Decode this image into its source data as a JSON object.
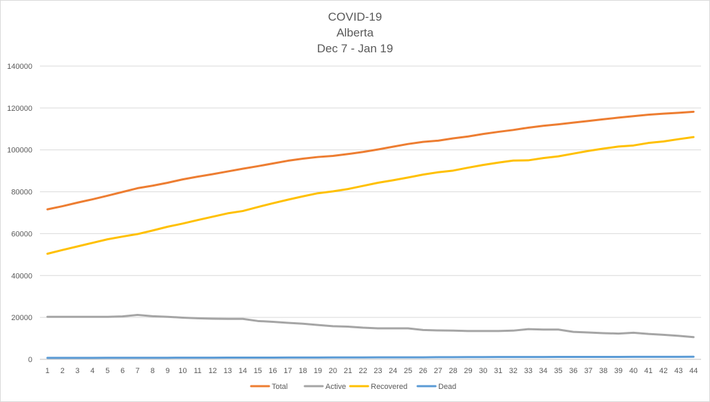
{
  "chart_data": {
    "type": "line",
    "title": [
      "COVID-19",
      "Alberta",
      "Dec 7 - Jan 19"
    ],
    "xlabel": "",
    "ylabel": "",
    "x": [
      1,
      2,
      3,
      4,
      5,
      6,
      7,
      8,
      9,
      10,
      11,
      12,
      13,
      14,
      15,
      16,
      17,
      18,
      19,
      20,
      21,
      22,
      23,
      24,
      25,
      26,
      27,
      28,
      29,
      30,
      31,
      32,
      33,
      34,
      35,
      36,
      37,
      38,
      39,
      40,
      41,
      42,
      43,
      44
    ],
    "ylim": [
      0,
      140000
    ],
    "yticks": [
      0,
      20000,
      40000,
      60000,
      80000,
      100000,
      120000,
      140000
    ],
    "grid": true,
    "legend_position": "bottom",
    "series": [
      {
        "name": "Total",
        "color": "#ED7D31",
        "values": [
          71600,
          73100,
          74800,
          76400,
          78100,
          79900,
          81700,
          82900,
          84300,
          85900,
          87200,
          88400,
          89700,
          91000,
          92200,
          93500,
          94800,
          95800,
          96600,
          97100,
          98000,
          99000,
          100200,
          101500,
          102800,
          103800,
          104400,
          105500,
          106400,
          107600,
          108600,
          109500,
          110600,
          111500,
          112200,
          113000,
          113800,
          114600,
          115400,
          116100,
          116800,
          117300,
          117700,
          118200
        ]
      },
      {
        "name": "Active",
        "color": "#A5A5A5",
        "values": [
          20300,
          20300,
          20300,
          20300,
          20300,
          20500,
          21200,
          20600,
          20300,
          19900,
          19600,
          19400,
          19300,
          19300,
          18300,
          17900,
          17400,
          17000,
          16400,
          15800,
          15600,
          15100,
          14800,
          14800,
          14800,
          14000,
          13800,
          13700,
          13500,
          13500,
          13500,
          13700,
          14400,
          14200,
          14200,
          13100,
          12800,
          12500,
          12300,
          12700,
          12100,
          11700,
          11200,
          10600
        ]
      },
      {
        "name": "Recovered",
        "color": "#FFC000",
        "values": [
          50400,
          52200,
          53900,
          55600,
          57300,
          58600,
          59800,
          61500,
          63300,
          64800,
          66500,
          68100,
          69700,
          70800,
          72700,
          74500,
          76200,
          77800,
          79300,
          80200,
          81300,
          82800,
          84300,
          85500,
          86800,
          88200,
          89300,
          90100,
          91500,
          92800,
          93900,
          94900,
          95000,
          96100,
          96900,
          98200,
          99500,
          100600,
          101600,
          102100,
          103300,
          104000,
          105100,
          106100
        ]
      },
      {
        "name": "Dead",
        "color": "#5B9BD5",
        "values": [
          680,
          690,
          700,
          710,
          720,
          730,
          740,
          750,
          760,
          780,
          790,
          800,
          810,
          820,
          830,
          840,
          850,
          860,
          880,
          900,
          910,
          920,
          930,
          940,
          950,
          960,
          1010,
          1040,
          1070,
          1080,
          1090,
          1100,
          1110,
          1120,
          1130,
          1140,
          1150,
          1160,
          1170,
          1180,
          1190,
          1200,
          1210,
          1220
        ]
      }
    ]
  }
}
